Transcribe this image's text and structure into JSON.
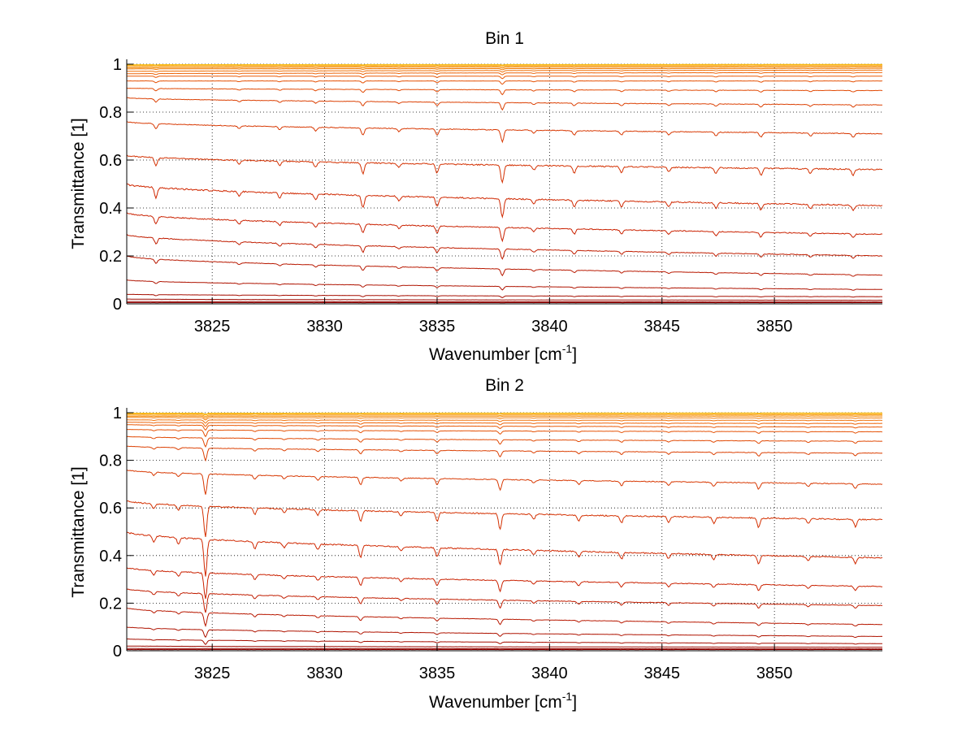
{
  "chart_data": [
    {
      "type": "line",
      "title": "Bin 1",
      "xlabel": "Wavenumber [cm",
      "xlabel_superscript": "-1",
      "xlabel_suffix": "]",
      "ylabel": "Transmittance [1]",
      "xlim": [
        3821.2,
        3854.8
      ],
      "ylim": [
        0,
        1
      ],
      "xticks": [
        3825,
        3830,
        3835,
        3840,
        3845,
        3850
      ],
      "xticklabels": [
        "3825",
        "3830",
        "3835",
        "3840",
        "3845",
        "3850"
      ],
      "yticks": [
        0,
        0.2,
        0.4,
        0.6,
        0.8,
        1
      ],
      "yticklabels": [
        "0",
        "0.2",
        "0.4",
        "0.6",
        "0.8",
        "1"
      ],
      "grid": true,
      "colormap": "dark red to orange to yellow/cyan",
      "absorption_lines": [
        {
          "x": 3822.5,
          "depth": 0.8
        },
        {
          "x": 3826.2,
          "depth": 0.4
        },
        {
          "x": 3828.0,
          "depth": 0.4
        },
        {
          "x": 3829.6,
          "depth": 0.5
        },
        {
          "x": 3831.7,
          "depth": 1.0
        },
        {
          "x": 3833.3,
          "depth": 0.4
        },
        {
          "x": 3835.0,
          "depth": 0.8
        },
        {
          "x": 3837.9,
          "depth": 1.6
        },
        {
          "x": 3839.3,
          "depth": 0.4
        },
        {
          "x": 3841.1,
          "depth": 0.6
        },
        {
          "x": 3843.2,
          "depth": 0.5
        },
        {
          "x": 3845.3,
          "depth": 0.4
        },
        {
          "x": 3847.4,
          "depth": 0.5
        },
        {
          "x": 3849.4,
          "depth": 0.6
        },
        {
          "x": 3851.6,
          "depth": 0.4
        },
        {
          "x": 3853.5,
          "depth": 0.5
        }
      ],
      "series_levels": [
        {
          "start": 0.005,
          "end": 0.005
        },
        {
          "start": 0.01,
          "end": 0.008
        },
        {
          "start": 0.02,
          "end": 0.015
        },
        {
          "start": 0.04,
          "end": 0.03
        },
        {
          "start": 0.1,
          "end": 0.06
        },
        {
          "start": 0.2,
          "end": 0.12
        },
        {
          "start": 0.29,
          "end": 0.2
        },
        {
          "start": 0.38,
          "end": 0.29
        },
        {
          "start": 0.5,
          "end": 0.41
        },
        {
          "start": 0.62,
          "end": 0.56
        },
        {
          "start": 0.76,
          "end": 0.71
        },
        {
          "start": 0.86,
          "end": 0.83
        },
        {
          "start": 0.9,
          "end": 0.89
        },
        {
          "start": 0.93,
          "end": 0.93
        },
        {
          "start": 0.95,
          "end": 0.95
        },
        {
          "start": 0.96,
          "end": 0.965
        },
        {
          "start": 0.97,
          "end": 0.975
        },
        {
          "start": 0.98,
          "end": 0.982
        },
        {
          "start": 0.985,
          "end": 0.988
        },
        {
          "start": 0.99,
          "end": 0.993
        },
        {
          "start": 0.995,
          "end": 0.997
        },
        {
          "start": 0.998,
          "end": 0.999
        }
      ]
    },
    {
      "type": "line",
      "title": "Bin 2",
      "xlabel": "Wavenumber [cm",
      "xlabel_superscript": "-1",
      "xlabel_suffix": "]",
      "ylabel": "Transmittance [1]",
      "xlim": [
        3821.2,
        3854.8
      ],
      "ylim": [
        0,
        1
      ],
      "xticks": [
        3825,
        3830,
        3835,
        3840,
        3845,
        3850
      ],
      "xticklabels": [
        "3825",
        "3830",
        "3835",
        "3840",
        "3845",
        "3850"
      ],
      "yticks": [
        0,
        0.2,
        0.4,
        0.6,
        0.8,
        1
      ],
      "yticklabels": [
        "0",
        "0.2",
        "0.4",
        "0.6",
        "0.8",
        "1"
      ],
      "grid": true,
      "colormap": "dark red to orange to yellow/cyan",
      "absorption_lines": [
        {
          "x": 3822.4,
          "depth": 0.5
        },
        {
          "x": 3823.5,
          "depth": 0.5
        },
        {
          "x": 3824.7,
          "depth": 3.0
        },
        {
          "x": 3826.9,
          "depth": 0.6
        },
        {
          "x": 3828.2,
          "depth": 0.4
        },
        {
          "x": 3829.7,
          "depth": 0.5
        },
        {
          "x": 3831.6,
          "depth": 1.0
        },
        {
          "x": 3833.4,
          "depth": 0.4
        },
        {
          "x": 3835.0,
          "depth": 0.8
        },
        {
          "x": 3837.8,
          "depth": 1.4
        },
        {
          "x": 3839.3,
          "depth": 0.4
        },
        {
          "x": 3841.3,
          "depth": 0.5
        },
        {
          "x": 3843.2,
          "depth": 0.6
        },
        {
          "x": 3845.3,
          "depth": 0.5
        },
        {
          "x": 3847.3,
          "depth": 0.5
        },
        {
          "x": 3849.3,
          "depth": 0.8
        },
        {
          "x": 3851.5,
          "depth": 0.4
        },
        {
          "x": 3853.6,
          "depth": 0.6
        }
      ],
      "series_levels": [
        {
          "start": 0.005,
          "end": 0.005
        },
        {
          "start": 0.01,
          "end": 0.008
        },
        {
          "start": 0.02,
          "end": 0.015
        },
        {
          "start": 0.05,
          "end": 0.03
        },
        {
          "start": 0.1,
          "end": 0.06
        },
        {
          "start": 0.18,
          "end": 0.11
        },
        {
          "start": 0.26,
          "end": 0.19
        },
        {
          "start": 0.35,
          "end": 0.27
        },
        {
          "start": 0.5,
          "end": 0.39
        },
        {
          "start": 0.63,
          "end": 0.55
        },
        {
          "start": 0.76,
          "end": 0.7
        },
        {
          "start": 0.86,
          "end": 0.83
        },
        {
          "start": 0.9,
          "end": 0.88
        },
        {
          "start": 0.93,
          "end": 0.92
        },
        {
          "start": 0.95,
          "end": 0.94
        },
        {
          "start": 0.96,
          "end": 0.955
        },
        {
          "start": 0.97,
          "end": 0.968
        },
        {
          "start": 0.98,
          "end": 0.978
        },
        {
          "start": 0.985,
          "end": 0.986
        },
        {
          "start": 0.99,
          "end": 0.991
        },
        {
          "start": 0.995,
          "end": 0.996
        },
        {
          "start": 0.998,
          "end": 0.999
        }
      ]
    }
  ]
}
